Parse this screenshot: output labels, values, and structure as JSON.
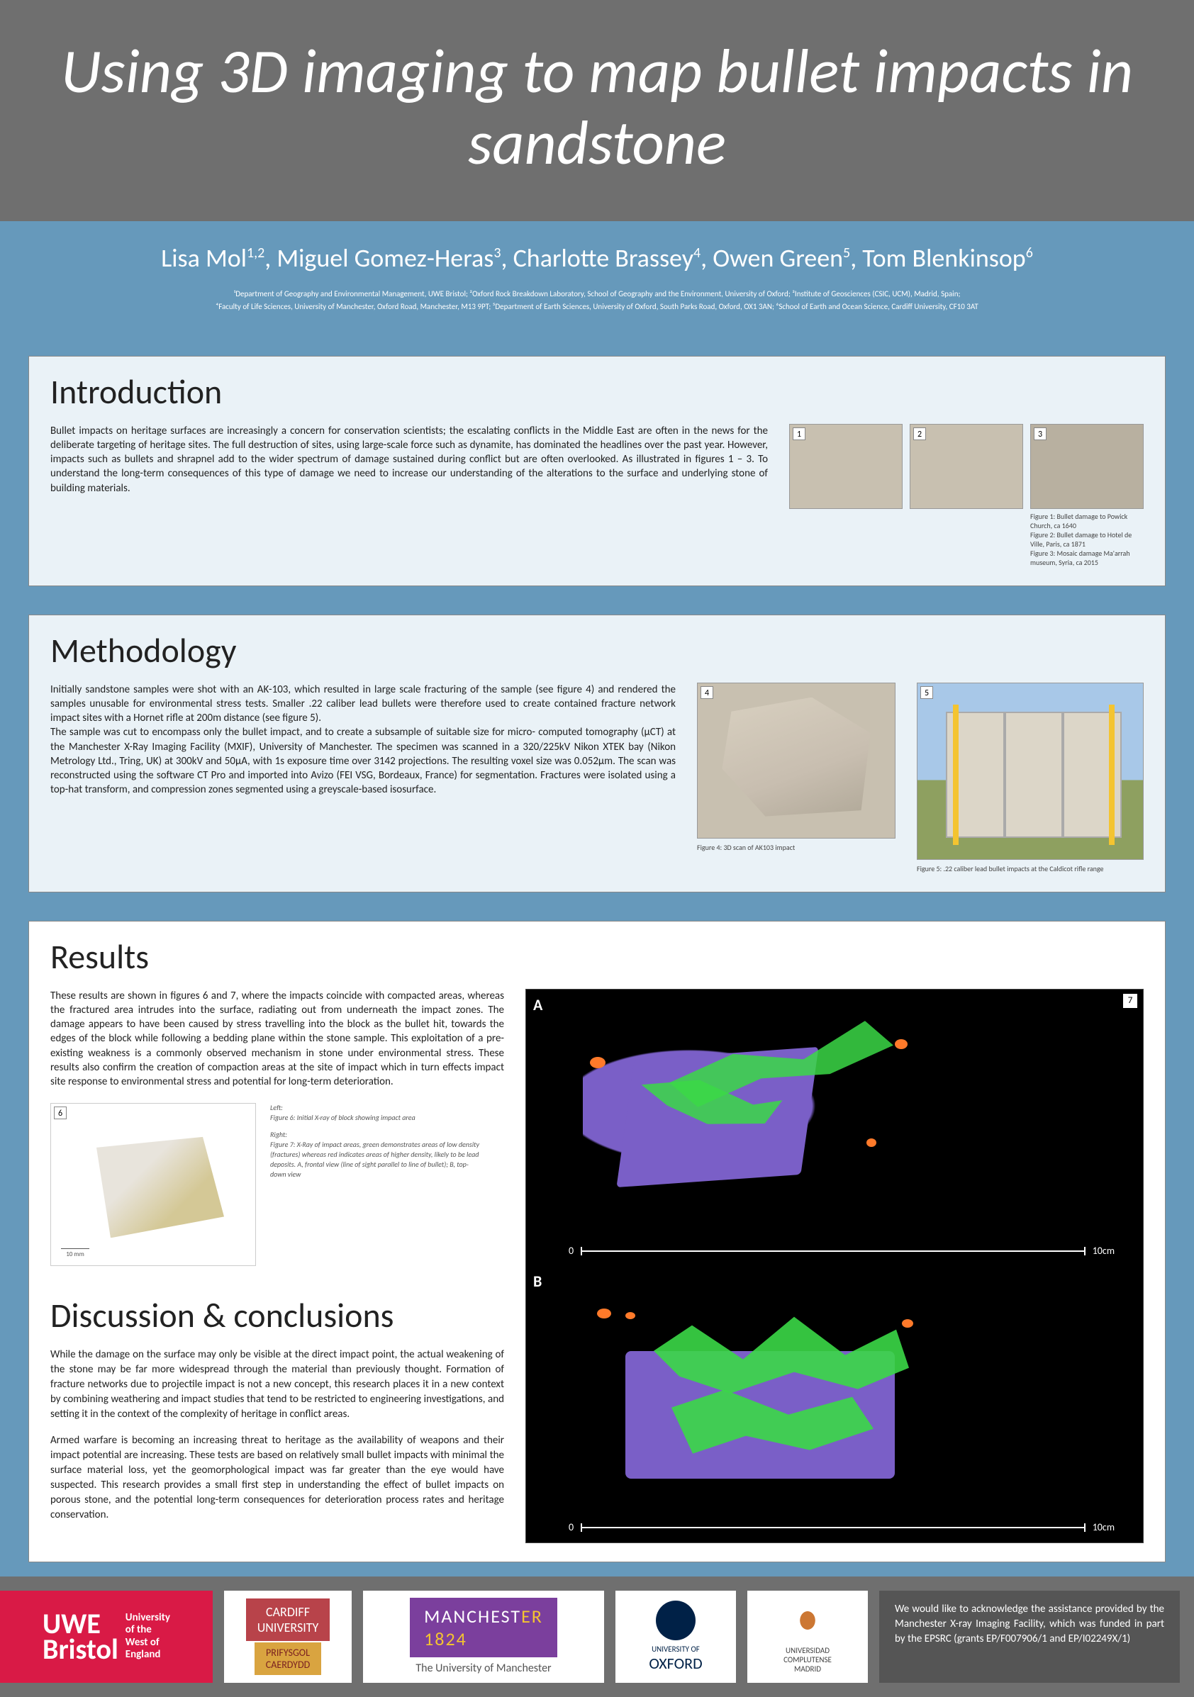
{
  "title": "Using 3D imaging to map bullet impacts in sandstone",
  "authors_html": "Lisa Mol<sup>1,2</sup>, Miguel Gomez-Heras<sup>3</sup>, Charlotte Brassey<sup>4</sup>, Owen Green<sup>5</sup>, Tom Blenkinsop<sup>6</sup>",
  "affiliations_line1": "¹Department of Geography and Environmental Management, UWE Bristol; ²Oxford Rock Breakdown Laboratory, School of Geography and the Environment, University of Oxford; ³Institute of Geosciences (CSIC, UCM), Madrid, Spain;",
  "affiliations_line2": "⁴Faculty of Life Sciences, University of Manchester, Oxford Road, Manchester, M13 9PT; ⁵Department of Earth Sciences, University of Oxford, South Parks Road, Oxford, OX1 3AN; ⁶School of Earth and Ocean Science, Cardiff University, CF10 3AT",
  "sections": {
    "intro": {
      "heading": "Introduction",
      "body": "Bullet impacts on heritage surfaces are increasingly a concern for conservation scientists; the escalating conflicts in the Middle East are often in the news for the deliberate targeting of heritage sites. The full destruction of sites, using large-scale force such as dynamite, has dominated the headlines over the past year. However, impacts such as bullets and shrapnel add to the wider spectrum of damage sustained during conflict but are often overlooked. As illustrated in figures 1 – 3. To understand the long-term consequences of this type of damage we need to increase our understanding of the alterations to the surface and underlying stone of building materials.",
      "fig_labels": [
        "1",
        "2",
        "3"
      ],
      "fig_captions": "Figure 1: Bullet damage to Powick Church, ca 1640\nFigure 2: Bullet damage to Hotel de Ville, Paris, ca 1871\nFigure 3: Mosaic damage Ma'arrah museum, Syria, ca 2015"
    },
    "meth": {
      "heading": "Methodology",
      "body": "Initially sandstone samples were shot with an AK-103, which resulted in large scale fracturing of the sample (see figure 4) and rendered the samples unusable for environmental stress tests. Smaller .22 caliber lead bullets were therefore used to create contained fracture network impact sites with a Hornet rifle at 200m distance (see figure 5).\nThe sample was cut to encompass only the bullet impact, and to create a subsample of suitable size for micro- computed tomography (μCT) at the Manchester X-Ray Imaging Facility (MXIF), University of Manchester. The specimen was scanned in a 320/225kV Nikon XTEK bay (Nikon Metrology Ltd., Tring, UK) at 300kV and 50μA, with 1s exposure time over 3142 projections. The resulting voxel size was 0.052μm. The scan was reconstructed using the software CT Pro and imported into Avizo (FEI VSG, Bordeaux, France) for segmentation. Fractures were isolated using a top-hat transform, and compression zones segmented using a greyscale-based isosurface.",
      "fig4_label": "4",
      "fig5_label": "5",
      "fig4_caption": "Figure 4: 3D scan of AK103 impact",
      "fig5_caption": "Figure 5: .22 caliber lead bullet impacts at the Caldicot rifle range"
    },
    "results": {
      "heading": "Results",
      "body": "These results are shown in figures 6 and 7, where the impacts coincide with compacted areas, whereas the fractured area intrudes into the surface, radiating out from underneath the impact zones. The damage appears to have been caused by stress travelling into the block as the bullet hit, towards the edges of the block while following a bedding plane within the stone sample. This exploitation of a pre-existing weakness is a commonly observed mechanism in stone under environmental stress. These results also confirm the creation of compaction areas at the site of impact which in turn effects impact site response to environmental stress and potential for long-term deterioration.",
      "fig6_label": "6",
      "fig7_label": "7",
      "fig6_caption_left": "Left:\nFigure 6: Initial X-ray of block showing impact area",
      "fig6_caption_right": "Right:\nFigure 7: X-Ray of impact areas, green demonstrates areas of low density (fractures) whereas red indicates areas of higher density, likely to be lead deposits. A, frontal view (line of sight parallel to line of bullet); B, top-down view",
      "scale_zero": "0",
      "scale_end": "10cm",
      "panel_a": "A",
      "panel_b": "B"
    },
    "disc": {
      "heading": "Discussion & conclusions",
      "p1": "While the damage on the surface may only be visible at the direct impact point, the actual weakening of the stone may be far more widespread through the material than previously thought. Formation of fracture networks due to projectile impact is not a new concept, this research places it in a new context by combining weathering and impact studies that tend to be restricted to engineering investigations, and setting it in the context of the complexity of heritage in conflict areas.",
      "p2": "Armed warfare is becoming an increasing threat to heritage as the availability of weapons and their impact potential are increasing.  These tests are based on relatively small bullet impacts with minimal the surface material loss, yet the geomorphological impact was far greater than the eye would have suspected. This research provides a small first step in understanding the effect of bullet impacts on porous stone, and the potential long-term consequences for deterioration process rates and heritage conservation."
    }
  },
  "footer": {
    "uwe_big": "UWE\nBristol",
    "uwe_small": "University\nof the\nWest of\nEngland",
    "cardiff_top": "CARDIFF\nUNIVERSITY",
    "cardiff_bot": "PRIFYSGOL\nCAERDYDD",
    "manch_year": "1824",
    "manch_sub": "The University of Manchester",
    "oxford_t1": "UNIVERSITY OF",
    "oxford_t2": "OXFORD",
    "complutense": "UNIVERSIDAD\nCOMPLUTENSE\nMADRID",
    "ack": "We would like to acknowledge the assistance provided by the Manchester X-ray Imaging Facility, which was funded in part by the EPSRC (grants EP/F007906/1 and EP/I02249X/1)"
  },
  "colors": {
    "title_band": "#6f6f6f",
    "blue_band": "#6699bb",
    "card_bg": "#eaf2f7",
    "fracture_green": "#3bd847",
    "lead_orange": "#ff7a2a",
    "ct_purple": "#7a5fc7",
    "uwe_red": "#d91a46",
    "cardiff_red": "#b8434a",
    "cardiff_gold": "#d9a440",
    "manchester_purple": "#7b3f9d",
    "oxford_blue": "#002147"
  }
}
